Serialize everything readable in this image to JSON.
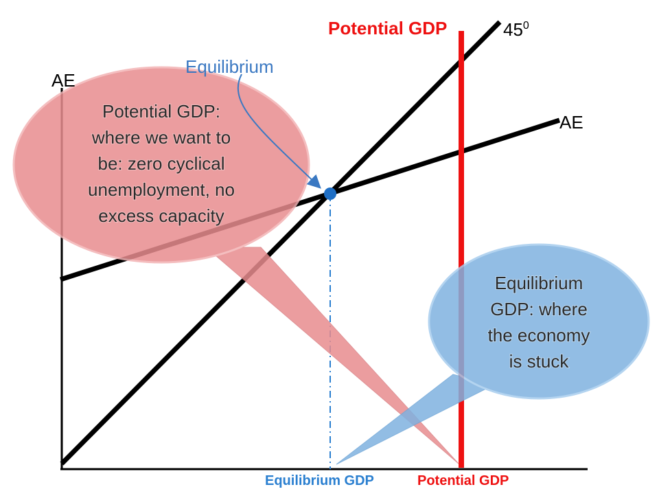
{
  "labels": {
    "potential_gdp_top": "Potential GDP",
    "line_45": "45",
    "line_45_sup": "0",
    "equilibrium": "Equilibrium",
    "y_axis": "AE",
    "ae_line": "AE"
  },
  "callouts": {
    "potential": {
      "lines": [
        "Potential GDP:",
        "where we want to",
        "be: zero cyclical",
        "unemployment, no",
        "excess capacity"
      ]
    },
    "equilibrium": {
      "lines": [
        "Equilibrium",
        "GDP: where",
        "the economy",
        "is stuck"
      ]
    }
  },
  "x_axis_labels": {
    "equilibrium_gdp": "Equilibrium GDP",
    "potential_gdp": "Potential GDP"
  }
}
